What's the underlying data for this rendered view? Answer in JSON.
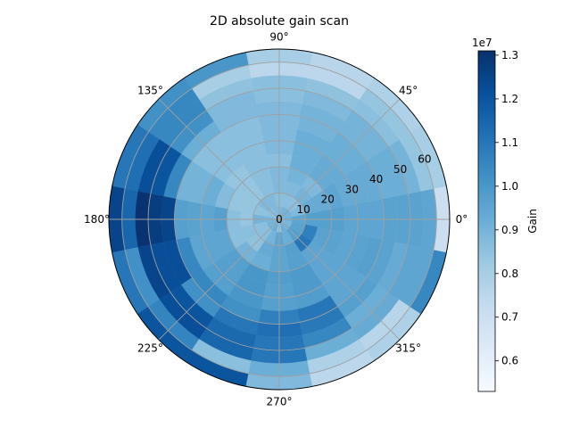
{
  "chart_data": {
    "type": "heatmap",
    "projection": "polar",
    "title": "2D absolute gain scan",
    "colormap": "Blues",
    "colorbar": {
      "label": "Gain",
      "offset_text": "1e7",
      "min": 0.53,
      "max": 1.31,
      "ticks": [
        "0.6",
        "0.7",
        "0.8",
        "0.9",
        "1.0",
        "1.1",
        "1.2",
        "1.3"
      ],
      "tick_values": [
        0.6,
        0.7,
        0.8,
        0.9,
        1.0,
        1.1,
        1.2,
        1.3
      ]
    },
    "angle_ticks": [
      {
        "deg": 0,
        "label": "0°"
      },
      {
        "deg": 45,
        "label": "45°"
      },
      {
        "deg": 90,
        "label": "90°"
      },
      {
        "deg": 135,
        "label": "135°"
      },
      {
        "deg": 180,
        "label": "180°"
      },
      {
        "deg": 225,
        "label": "225°"
      },
      {
        "deg": 270,
        "label": "270°"
      },
      {
        "deg": 315,
        "label": "315°"
      }
    ],
    "radial_ticks": [
      {
        "r": 0,
        "label": "0"
      },
      {
        "r": 10,
        "label": "10"
      },
      {
        "r": 20,
        "label": "20"
      },
      {
        "r": 30,
        "label": "30"
      },
      {
        "r": 40,
        "label": "40"
      },
      {
        "r": 50,
        "label": "50"
      },
      {
        "r": 60,
        "label": "60"
      }
    ],
    "r_edges": [
      0,
      5,
      10,
      15,
      20,
      25,
      30,
      35,
      40,
      45,
      50,
      55,
      60,
      65
    ],
    "theta_edges": [
      -11.25,
      11.25,
      33.75,
      56.25,
      78.75,
      101.25,
      123.75,
      146.25,
      168.75,
      191.25,
      213.75,
      236.25,
      258.75,
      281.25,
      303.75,
      326.25,
      348.75
    ],
    "values": [
      [
        0.92,
        0.9,
        0.91,
        0.9,
        0.88,
        0.88,
        0.86,
        0.86,
        0.9,
        0.9,
        0.9,
        0.92,
        0.84,
        0.92,
        0.9,
        0.89
      ],
      [
        0.95,
        0.88,
        0.86,
        0.86,
        0.86,
        0.88,
        0.88,
        0.85,
        0.9,
        0.86,
        0.86,
        0.9,
        0.95,
        0.92,
        0.97,
        0.96
      ],
      [
        0.97,
        0.93,
        0.9,
        0.88,
        0.88,
        0.86,
        0.84,
        0.84,
        0.84,
        0.86,
        0.85,
        0.93,
        0.95,
        0.97,
        1.1,
        1.07
      ],
      [
        0.97,
        0.93,
        0.88,
        0.9,
        0.88,
        0.86,
        0.84,
        0.84,
        0.86,
        0.86,
        0.9,
        0.92,
        0.95,
        0.97,
        0.95,
        0.96
      ],
      [
        0.97,
        0.95,
        0.93,
        0.92,
        0.86,
        0.86,
        0.84,
        0.87,
        0.97,
        0.95,
        0.97,
        1.0,
        0.98,
        0.99,
        0.95,
        0.96
      ],
      [
        0.95,
        0.93,
        0.93,
        0.92,
        0.88,
        0.86,
        0.86,
        0.92,
        0.95,
        0.95,
        0.97,
        1.0,
        0.97,
        0.99,
        0.95,
        0.95
      ],
      [
        0.95,
        0.93,
        0.92,
        0.92,
        0.88,
        0.86,
        0.86,
        0.9,
        0.96,
        0.95,
        0.97,
        1.0,
        0.97,
        0.98,
        0.95,
        0.96
      ],
      [
        0.95,
        0.93,
        0.92,
        0.9,
        0.88,
        0.86,
        0.86,
        0.9,
        0.97,
        1.05,
        1.05,
        1.02,
        1.07,
        1.1,
        0.95,
        0.97
      ],
      [
        0.96,
        0.92,
        0.9,
        0.9,
        0.88,
        0.88,
        0.92,
        1.05,
        1.25,
        1.22,
        1.02,
        1.1,
        1.12,
        1.09,
        0.97,
        0.96
      ],
      [
        0.96,
        0.92,
        0.9,
        0.88,
        0.86,
        0.88,
        1.02,
        1.2,
        1.27,
        1.22,
        1.2,
        1.14,
        1.1,
        1.05,
        0.92,
        0.93
      ],
      [
        0.96,
        0.9,
        0.86,
        0.85,
        0.86,
        0.85,
        1.05,
        1.22,
        1.3,
        1.25,
        1.22,
        1.15,
        1.1,
        0.92,
        0.93,
        0.95
      ],
      [
        0.95,
        0.84,
        0.84,
        0.75,
        0.75,
        0.8,
        1.05,
        1.12,
        1.15,
        1.02,
        1.06,
        0.86,
        0.92,
        0.78,
        0.76,
        0.95
      ],
      [
        0.7,
        0.8,
        0.78,
        0.76,
        0.8,
        1.0,
        1.02,
        1.1,
        1.25,
        1.1,
        1.2,
        1.2,
        0.88,
        0.75,
        0.78,
        1.05
      ],
      [
        0.68,
        0.8,
        0.86,
        0.83,
        0.8,
        0.56,
        0.56,
        0.56,
        1.2,
        0.94,
        0.55,
        0.88,
        0.82,
        0.6,
        0.72,
        1.0
      ]
    ]
  }
}
